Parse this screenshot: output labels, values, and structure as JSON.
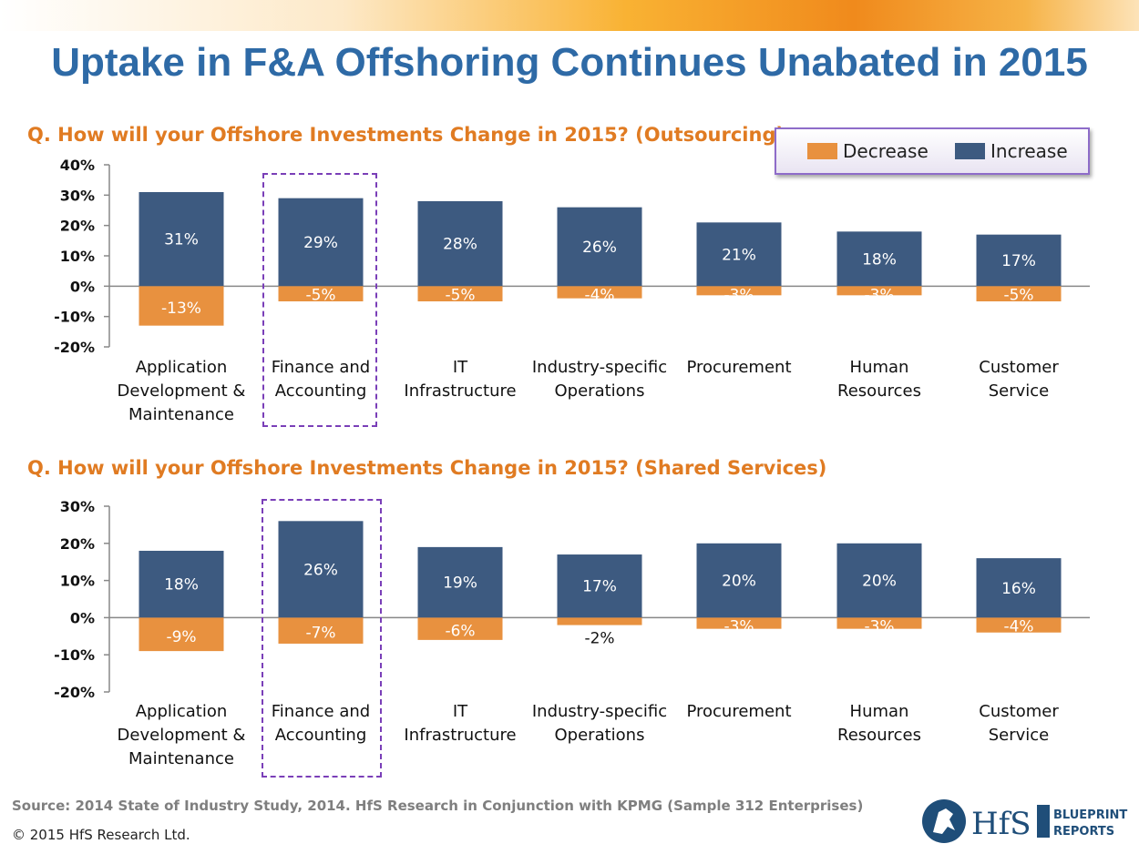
{
  "title": "Uptake in F&A Offshoring Continues Unabated in 2015",
  "legend": {
    "items": [
      {
        "label": "Decrease",
        "color": "#e8913f"
      },
      {
        "label": "Increase",
        "color": "#3d5a80"
      }
    ]
  },
  "chart_data": [
    {
      "type": "bar",
      "title": "Q. How will your Offshore Investments Change in 2015? (Outsourcing)",
      "categories": [
        "Application Development & Maintenance",
        "Finance and Accounting",
        "IT Infrastructure",
        "Industry-specific Operations",
        "Procurement",
        "Human Resources",
        "Customer Service"
      ],
      "series": [
        {
          "name": "Increase",
          "values": [
            31,
            29,
            28,
            26,
            21,
            18,
            17
          ],
          "labels": [
            "31%",
            "29%",
            "28%",
            "26%",
            "21%",
            "18%",
            "17%"
          ]
        },
        {
          "name": "Decrease",
          "values": [
            -13,
            -5,
            -5,
            -4,
            -3,
            -3,
            -5
          ],
          "labels": [
            "-13%",
            "-5%",
            "-5%",
            "-4%",
            "-3%",
            "-3%",
            "-5%"
          ]
        }
      ],
      "yticks": [
        "40%",
        "30%",
        "20%",
        "10%",
        "0%",
        "-10%",
        "-20%"
      ],
      "ylim": [
        -20,
        40
      ],
      "highlighted_category": "Finance and Accounting"
    },
    {
      "type": "bar",
      "title": "Q. How will your Offshore Investments Change in 2015? (Shared Services)",
      "categories": [
        "Application Development & Maintenance",
        "Finance and Accounting",
        "IT Infrastructure",
        "Industry-specific Operations",
        "Procurement",
        "Human Resources",
        "Customer Service"
      ],
      "series": [
        {
          "name": "Increase",
          "values": [
            18,
            26,
            19,
            17,
            20,
            20,
            16
          ],
          "labels": [
            "18%",
            "26%",
            "19%",
            "17%",
            "20%",
            "20%",
            "16%"
          ]
        },
        {
          "name": "Decrease",
          "values": [
            -9,
            -7,
            -6,
            -2,
            -3,
            -3,
            -4
          ],
          "labels": [
            "-9%",
            "-7%",
            "-6%",
            "-2%",
            "-3%",
            "-3%",
            "-4%"
          ]
        }
      ],
      "yticks": [
        "30%",
        "20%",
        "10%",
        "0%",
        "-10%",
        "-20%"
      ],
      "ylim": [
        -20,
        30
      ],
      "highlighted_category": "Finance and Accounting"
    }
  ],
  "category_lines": [
    [
      "Application",
      "Development &",
      "Maintenance"
    ],
    [
      "Finance and",
      "Accounting"
    ],
    [
      "IT",
      "Infrastructure"
    ],
    [
      "Industry-specific",
      "Operations"
    ],
    [
      "Procurement"
    ],
    [
      "Human",
      "Resources"
    ],
    [
      "Customer",
      "Service"
    ]
  ],
  "source": "Source: 2014 State  of Industry Study, 2014.  HfS Research in Conjunction with KPMG (Sample 312 Enterprises)",
  "copyright": "© 2015 HfS Research Ltd.",
  "logo": {
    "brand": "HfS",
    "line1": "BLUEPRINT",
    "line2": "REPORTS"
  }
}
